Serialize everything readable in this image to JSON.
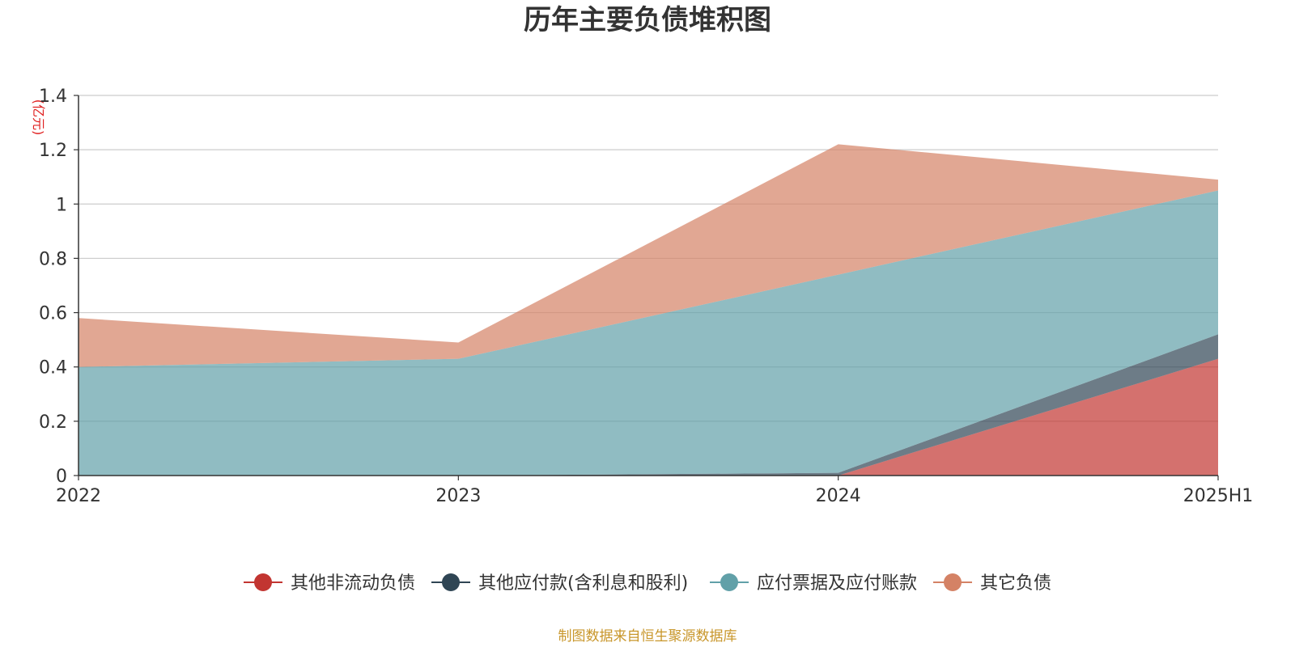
{
  "chart_data": {
    "type": "area",
    "stacked": true,
    "title": "历年主要负债堆积图",
    "unit_label": "(亿元)",
    "categories": [
      "2022",
      "2023",
      "2024",
      "2025H1"
    ],
    "y_ticks": [
      "0",
      "0.2",
      "0.4",
      "0.6",
      "0.8",
      "1",
      "1.2",
      "1.4"
    ],
    "ylim": [
      0,
      1.4
    ],
    "grid": true,
    "legend_position": "bottom",
    "series": [
      {
        "name": "其他非流动负债",
        "values": [
          0,
          0,
          0,
          0.43
        ],
        "color": "#c23531"
      },
      {
        "name": "其他应付款(含利息和股利)",
        "values": [
          0,
          0,
          0.01,
          0.09
        ],
        "color": "#2f4554"
      },
      {
        "name": "应付票据及应付账款",
        "values": [
          0.4,
          0.43,
          0.73,
          0.53
        ],
        "color": "#61a0a8"
      },
      {
        "name": "其它负债",
        "values": [
          0.18,
          0.06,
          0.48,
          0.04
        ],
        "color": "#d48265"
      }
    ],
    "source": "制图数据来自恒生聚源数据库"
  }
}
